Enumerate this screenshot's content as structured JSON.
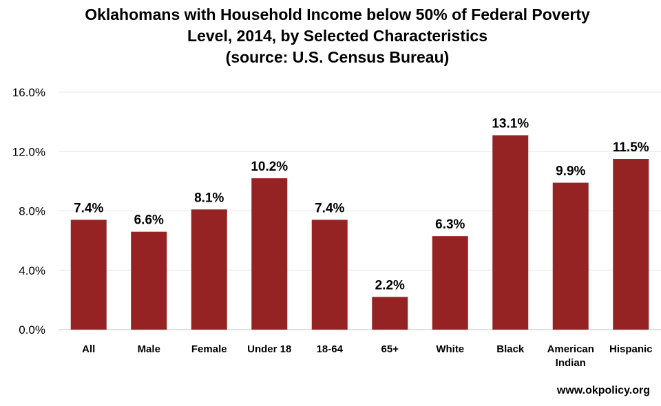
{
  "chart_data": {
    "type": "bar",
    "title_lines": [
      "Oklahomans with Household Income below 50% of Federal Poverty",
      "Level, 2014, by Selected Characteristics",
      "(source: U.S. Census Bureau)"
    ],
    "categories": [
      "All",
      "Male",
      "Female",
      "Under 18",
      "18-64",
      "65+",
      "White",
      "Black",
      "American Indian",
      "Hispanic"
    ],
    "category_lines": [
      [
        "All"
      ],
      [
        "Male"
      ],
      [
        "Female"
      ],
      [
        "Under 18"
      ],
      [
        "18-64"
      ],
      [
        "65+"
      ],
      [
        "White"
      ],
      [
        "Black"
      ],
      [
        "American",
        "Indian"
      ],
      [
        "Hispanic"
      ]
    ],
    "values": [
      7.4,
      6.6,
      8.1,
      10.2,
      7.4,
      2.2,
      6.3,
      13.1,
      9.9,
      11.5
    ],
    "data_labels": [
      "7.4%",
      "6.6%",
      "8.1%",
      "10.2%",
      "7.4%",
      "2.2%",
      "6.3%",
      "13.1%",
      "9.9%",
      "11.5%"
    ],
    "yticks": [
      0,
      4,
      8,
      12,
      16
    ],
    "ytick_labels": [
      "0.0%",
      "4.0%",
      "8.0%",
      "12.0%",
      "16.0%"
    ],
    "ylim": [
      0,
      16
    ],
    "xlabel": "",
    "ylabel": "",
    "grid": true,
    "legend": "none",
    "bar_color": "#952323",
    "grid_color": "#e6e6e6"
  },
  "watermark": "www.okpolicy.org"
}
